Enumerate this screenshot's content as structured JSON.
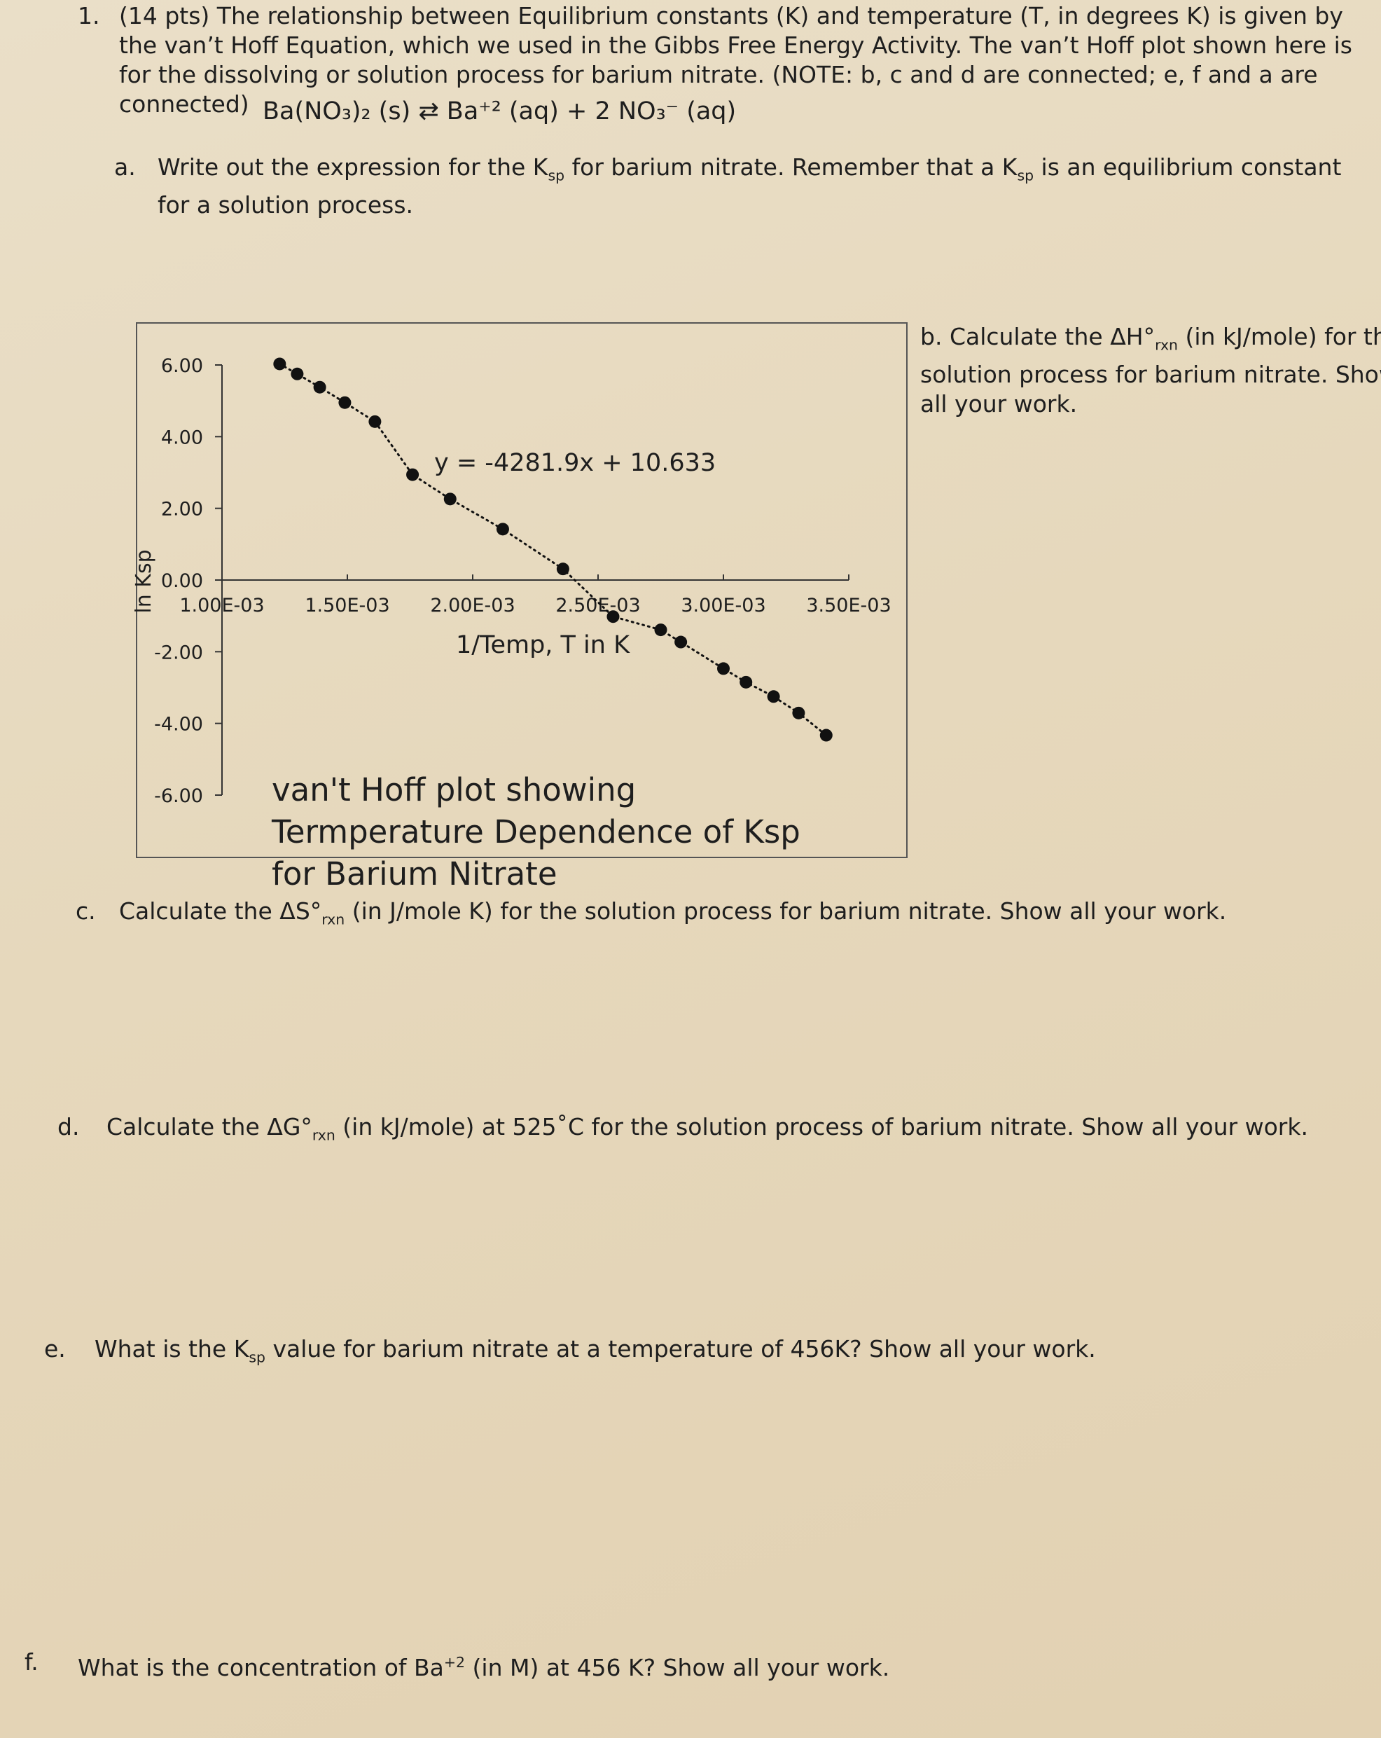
{
  "question": {
    "number": "1.",
    "text": "(14 pts) The relationship between Equilibrium constants (K) and temperature (T, in degrees K) is given by the van’t Hoff Equation, which we used in the Gibbs Free Energy Activity. The van’t Hoff plot shown here is for the dissolving or solution process for barium nitrate. (NOTE: b, c and d are connected; e, f and a are connected)"
  },
  "equation": "Ba(NO₃)₂ (s) ⇄ Ba⁺² (aq) + 2 NO₃⁻ (aq)",
  "parts": [
    {
      "label": "a.",
      "segments": [
        {
          "text": "Write out the expression for the K"
        },
        {
          "sub": "sp"
        },
        {
          "text": " for barium nitrate. Remember that a K"
        },
        {
          "sub": "sp"
        },
        {
          "text": " is an equilibrium constant for a solution process."
        }
      ]
    },
    {
      "label": "b.",
      "segments": [
        {
          "text": "Calculate the ΔH°"
        },
        {
          "sub": "rxn"
        },
        {
          "text": " (in kJ/mole) for the solution process for barium nitrate. Show all your work."
        }
      ]
    },
    {
      "label": "c.",
      "segments": [
        {
          "text": "Calculate the ΔS°"
        },
        {
          "sub": "rxn"
        },
        {
          "text": " (in J/mole K) for the solution process for barium nitrate. Show all your work."
        }
      ]
    },
    {
      "label": "d.",
      "segments": [
        {
          "text": "Calculate the ΔG°"
        },
        {
          "sub": "rxn"
        },
        {
          "text": " (in kJ/mole) at 525˚C for the solution process of barium nitrate. Show all your work."
        }
      ]
    },
    {
      "label": "e.",
      "segments": [
        {
          "text": "What is the K"
        },
        {
          "sub": "sp"
        },
        {
          "text": " value for barium nitrate at a temperature of 456K? Show all your work."
        }
      ]
    },
    {
      "label": "f.",
      "segments": [
        {
          "text": "What is the concentration of Ba"
        },
        {
          "sup": "+2"
        },
        {
          "text": " (in M) at 456 K? Show all your work."
        }
      ]
    }
  ],
  "chart_data": {
    "type": "line",
    "line_style": "dotted",
    "color": "#111111",
    "title": "van't Hoff plot showing Termperature Dependence of Ksp for Barium Nitrate",
    "annotation": "y = -4281.9x + 10.633",
    "x_label": "1/Temp, T in K",
    "y_label": "ln Ksp",
    "x": [
      0.00123,
      0.0013,
      0.00139,
      0.00149,
      0.00161,
      0.00176,
      0.00191,
      0.00212,
      0.00236,
      0.00256,
      0.00275,
      0.00283,
      0.003,
      0.00309,
      0.0032,
      0.0033,
      0.00341
    ],
    "values": [
      6.03,
      5.75,
      5.38,
      4.95,
      4.42,
      2.94,
      2.26,
      1.42,
      0.31,
      -1.02,
      -1.39,
      -1.73,
      -2.47,
      -2.85,
      -3.25,
      -3.71,
      -4.33
    ],
    "xlim": [
      0.001,
      0.0035
    ],
    "ylim": [
      -6,
      6
    ],
    "xticks": [
      {
        "value": 0.001,
        "label": "1.00E-03"
      },
      {
        "value": 0.0015,
        "label": "1.50E-03"
      },
      {
        "value": 0.002,
        "label": "2.00E-03"
      },
      {
        "value": 0.0025,
        "label": "2.50E-03"
      },
      {
        "value": 0.003,
        "label": "3.00E-03"
      },
      {
        "value": 0.0035,
        "label": "3.50E-03"
      }
    ],
    "yticks": [
      {
        "value": 6,
        "label": "6.00"
      },
      {
        "value": 4,
        "label": "4.00"
      },
      {
        "value": 2,
        "label": "2.00"
      },
      {
        "value": 0,
        "label": "0.00"
      },
      {
        "value": -2,
        "label": "-2.00"
      },
      {
        "value": -4,
        "label": "-4.00"
      },
      {
        "value": -6,
        "label": "-6.00"
      }
    ],
    "grid": false
  }
}
